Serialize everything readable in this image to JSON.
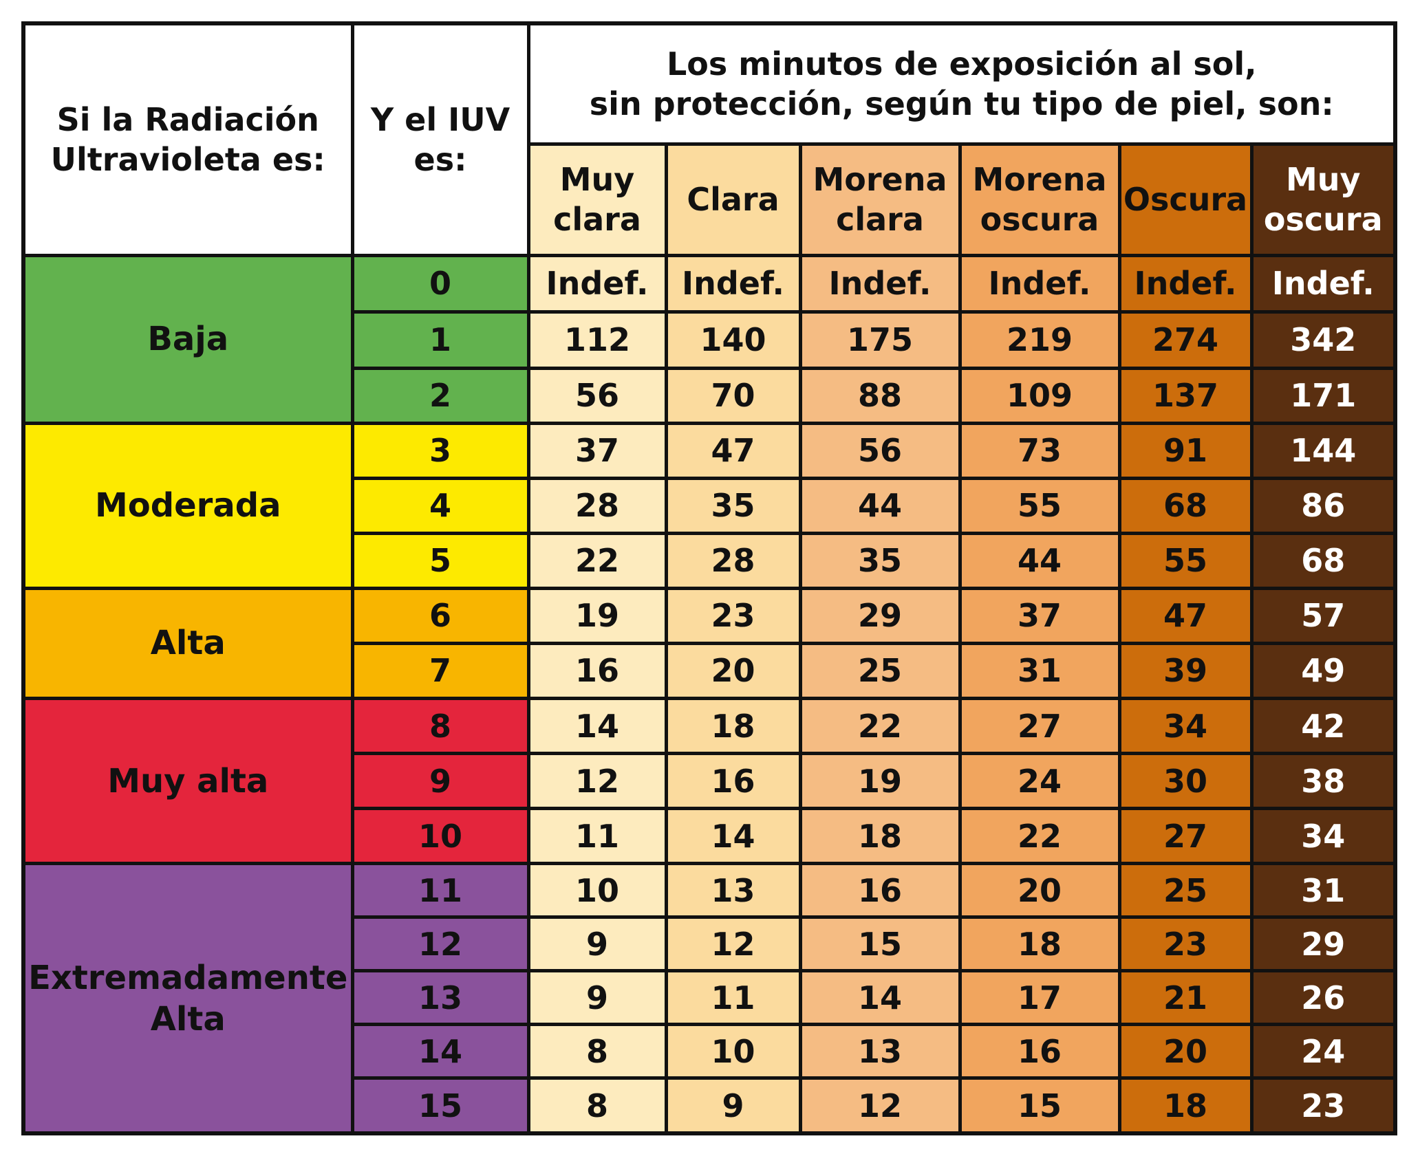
{
  "header": {
    "radiation_label": "Si la Radiación\nUltravioleta es:",
    "iuv_label": "Y el IUV\nes:",
    "minutes_label": "Los minutos de exposición al sol,\nsin protección, según tu tipo de piel, son:"
  },
  "skin_types": [
    {
      "label": "Muy\nclara",
      "color": "#FDEBBE",
      "text_color": "#111111"
    },
    {
      "label": "Clara",
      "color": "#FBDB9E",
      "text_color": "#111111"
    },
    {
      "label": "Morena\nclara",
      "color": "#F5BC83",
      "text_color": "#111111"
    },
    {
      "label": "Morena\noscura",
      "color": "#F1A55E",
      "text_color": "#111111"
    },
    {
      "label": "Oscura",
      "color": "#CC6D0C",
      "text_color": "#111111"
    },
    {
      "label": "Muy\noscura",
      "color": "#5A2F10",
      "text_color": "#ffffff"
    }
  ],
  "categories": [
    {
      "label": "Baja",
      "color": "#62B24E",
      "rows": [
        {
          "iuv": "0",
          "values": [
            "Indef.",
            "Indef.",
            "Indef.",
            "Indef.",
            "Indef.",
            "Indef."
          ]
        },
        {
          "iuv": "1",
          "values": [
            "112",
            "140",
            "175",
            "219",
            "274",
            "342"
          ]
        },
        {
          "iuv": "2",
          "values": [
            "56",
            "70",
            "88",
            "109",
            "137",
            "171"
          ]
        }
      ]
    },
    {
      "label": "Moderada",
      "color": "#FDEA00",
      "rows": [
        {
          "iuv": "3",
          "values": [
            "37",
            "47",
            "56",
            "73",
            "91",
            "144"
          ]
        },
        {
          "iuv": "4",
          "values": [
            "28",
            "35",
            "44",
            "55",
            "68",
            "86"
          ]
        },
        {
          "iuv": "5",
          "values": [
            "22",
            "28",
            "35",
            "44",
            "55",
            "68"
          ]
        }
      ]
    },
    {
      "label": "Alta",
      "color": "#F8B500",
      "rows": [
        {
          "iuv": "6",
          "values": [
            "19",
            "23",
            "29",
            "37",
            "47",
            "57"
          ]
        },
        {
          "iuv": "7",
          "values": [
            "16",
            "20",
            "25",
            "31",
            "39",
            "49"
          ]
        }
      ]
    },
    {
      "label": "Muy alta",
      "color": "#E4253C",
      "rows": [
        {
          "iuv": "8",
          "values": [
            "14",
            "18",
            "22",
            "27",
            "34",
            "42"
          ]
        },
        {
          "iuv": "9",
          "values": [
            "12",
            "16",
            "19",
            "24",
            "30",
            "38"
          ]
        },
        {
          "iuv": "10",
          "values": [
            "11",
            "14",
            "18",
            "22",
            "27",
            "34"
          ]
        }
      ]
    },
    {
      "label": "Extremadamente\nAlta",
      "color": "#8A529C",
      "rows": [
        {
          "iuv": "11",
          "values": [
            "10",
            "13",
            "16",
            "20",
            "25",
            "31"
          ]
        },
        {
          "iuv": "12",
          "values": [
            "9",
            "12",
            "15",
            "18",
            "23",
            "29"
          ]
        },
        {
          "iuv": "13",
          "values": [
            "9",
            "11",
            "14",
            "17",
            "21",
            "26"
          ]
        },
        {
          "iuv": "14",
          "values": [
            "8",
            "10",
            "13",
            "16",
            "20",
            "24"
          ]
        },
        {
          "iuv": "15",
          "values": [
            "8",
            "9",
            "12",
            "15",
            "18",
            "23"
          ]
        }
      ]
    }
  ]
}
